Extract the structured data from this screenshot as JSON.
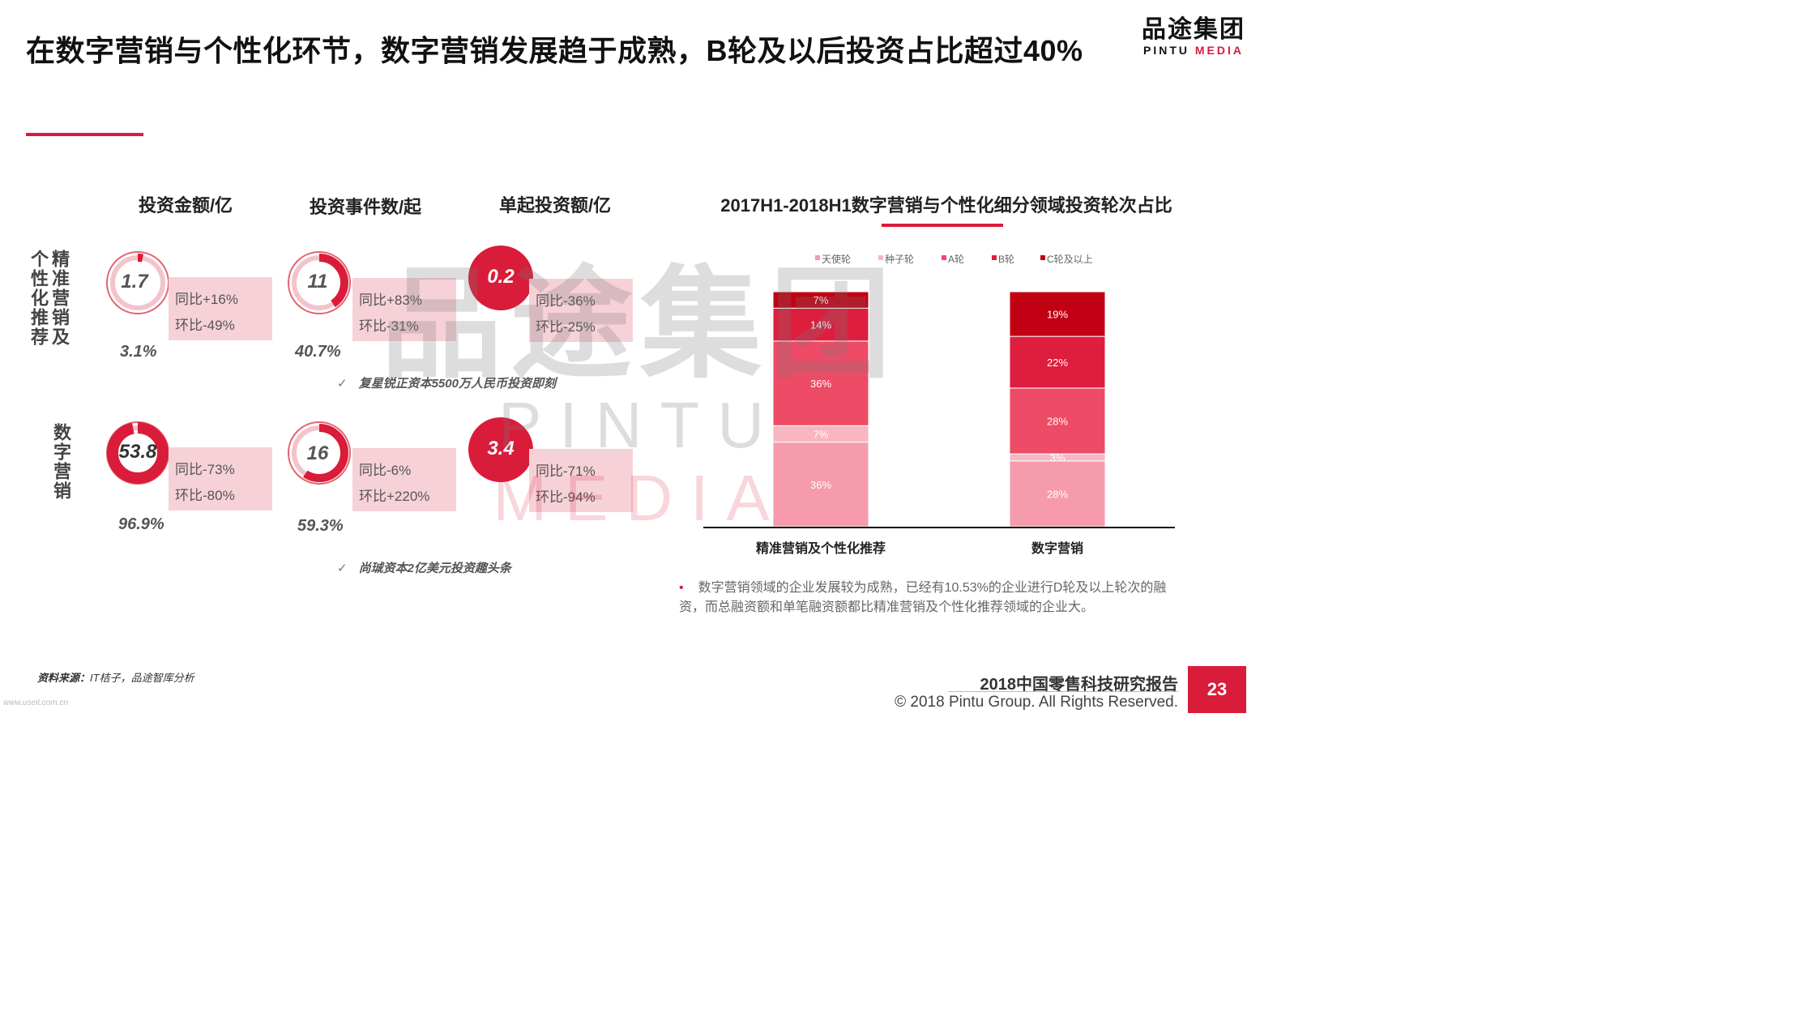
{
  "title": "在数字营销与个性化环节，数字营销发展趋于成熟，B轮及以后投资占比超过40%",
  "logo": {
    "cn": "品途集团",
    "en_black": "PINTU",
    "en_red": "MEDIA"
  },
  "watermark": {
    "cn": "品途集团",
    "en_black": "PINTU",
    "en_red": "MEDIA"
  },
  "columns": [
    "投资金额/亿",
    "投资事件数/起",
    "单起投资额/亿"
  ],
  "rows": [
    {
      "label": "精准营销及个性化推荐",
      "amount": {
        "value": "1.7",
        "fraction": 0.031,
        "yoy": "同比+16%",
        "qoq": "环比-49%",
        "share": "3.1%"
      },
      "events": {
        "value": "11",
        "fraction": 0.407,
        "yoy": "同比+83%",
        "qoq": "环比-31%",
        "share": "40.7%"
      },
      "avg": {
        "value": "0.2",
        "yoy": "同比-36%",
        "qoq": "环比-25%"
      },
      "note": "复星锐正资本5500万人民币投资即刻"
    },
    {
      "label": "数字营销",
      "amount": {
        "value": "53.8",
        "fraction": 0.969,
        "yoy": "同比-73%",
        "qoq": "环比-80%",
        "share": "96.9%"
      },
      "events": {
        "value": "16",
        "fraction": 0.593,
        "yoy": "同比-6%",
        "qoq": "环比+220%",
        "share": "59.3%"
      },
      "avg": {
        "value": "3.4",
        "yoy": "同比-71%",
        "qoq": "环比-94%"
      },
      "note": "尚珹资本2亿美元投资趣头条"
    }
  ],
  "check_mark": "✓",
  "chart_data": {
    "type": "bar",
    "stacked": true,
    "title": "2017H1-2018H1数字营销与个性化细分领域投资轮次占比",
    "categories": [
      "精准营销及个性化推荐",
      "数字营销"
    ],
    "series": [
      {
        "name": "天使轮",
        "values": [
          36,
          28
        ],
        "labels": [
          "36%",
          "28%"
        ],
        "color": "#f59bab"
      },
      {
        "name": "种子轮",
        "values": [
          7,
          3
        ],
        "labels": [
          "7%",
          "3%"
        ],
        "color": "#f8b6c2"
      },
      {
        "name": "A轮",
        "values": [
          36,
          28
        ],
        "labels": [
          "36%",
          "28%"
        ],
        "color": "#ee4b66"
      },
      {
        "name": "B轮",
        "values": [
          14,
          22
        ],
        "labels": [
          "14%",
          "22%"
        ],
        "color": "#de1e3e"
      },
      {
        "name": "C轮及以上",
        "values": [
          7,
          19
        ],
        "labels": [
          "7%",
          "19%"
        ],
        "color": "#c10013"
      }
    ],
    "ylim": [
      0,
      100
    ],
    "legend": "top",
    "grid": false
  },
  "bullet": "数字营销领域的企业发展较为成熟，已经有10.53%的企业进行D轮及以上轮次的融资，而总融资额和单笔融资额都比精准营销及个性化推荐领域的企业大。",
  "source_label": "资料来源：",
  "source_text": "IT桔子，品途智库分析",
  "tiny_url": "www.useit.com.cn",
  "report_title": "2018中国零售科技研究报告",
  "copyright": "© 2018 Pintu Group. All Rights Reserved.",
  "page_number": "23",
  "colors": {
    "accent": "#d91c3a",
    "card": "#f7d1d8",
    "ring_light": "#f3c3cc"
  }
}
